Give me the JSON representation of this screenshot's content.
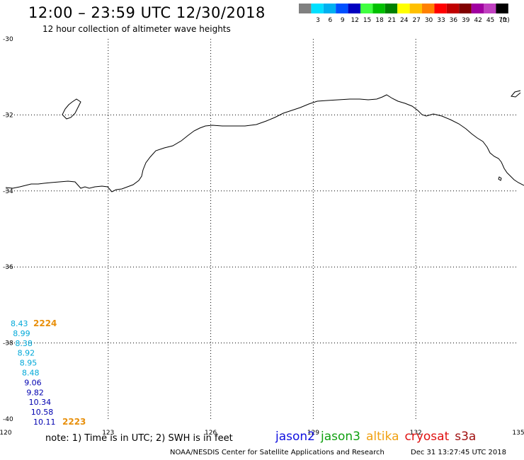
{
  "header": {
    "title": "12:00 – 23:59 UTC 12/30/2018",
    "subtitle": "12 hour collection of altimeter wave heights"
  },
  "colorbar": {
    "unit": "(ft)",
    "bins": [
      {
        "label": "",
        "color": "#808080"
      },
      {
        "label": "3",
        "color": "#00e0ff"
      },
      {
        "label": "6",
        "color": "#00b0f0"
      },
      {
        "label": "9",
        "color": "#0050ff"
      },
      {
        "label": "12",
        "color": "#0000c0"
      },
      {
        "label": "15",
        "color": "#40ff40"
      },
      {
        "label": "18",
        "color": "#00c000"
      },
      {
        "label": "21",
        "color": "#008000"
      },
      {
        "label": "24",
        "color": "#ffff00"
      },
      {
        "label": "27",
        "color": "#ffc000"
      },
      {
        "label": "30",
        "color": "#ff8000"
      },
      {
        "label": "33",
        "color": "#ff0000"
      },
      {
        "label": "36",
        "color": "#c00000"
      },
      {
        "label": "39",
        "color": "#800000"
      },
      {
        "label": "42",
        "color": "#a000a0"
      },
      {
        "label": "45",
        "color": "#c040c0"
      },
      {
        "label": "70",
        "color": "#000000"
      }
    ]
  },
  "map": {
    "lon_range": [
      120,
      135
    ],
    "lat_range": [
      -40,
      -30
    ],
    "lon_ticks": [
      "120",
      "123",
      "126",
      "129",
      "132",
      "135"
    ],
    "lat_ticks": [
      "-30",
      "-32",
      "-34",
      "-36",
      "-38",
      "-40"
    ],
    "grid": "dotted"
  },
  "observations": [
    {
      "value": "8.43",
      "color": "#00a8d8"
    },
    {
      "value": "8.99",
      "color": "#00a8d8"
    },
    {
      "value": "8.38",
      "color": "#00a8d8"
    },
    {
      "value": "8.92",
      "color": "#00a8d8"
    },
    {
      "value": "8.95",
      "color": "#00a8d8"
    },
    {
      "value": "8.48",
      "color": "#00a8d8"
    },
    {
      "value": "9.06",
      "color": "#0000b0"
    },
    {
      "value": "9.82",
      "color": "#0000b0"
    },
    {
      "value": "10.34",
      "color": "#0000b0"
    },
    {
      "value": "10.58",
      "color": "#0000b0"
    },
    {
      "value": "10.11",
      "color": "#0000b0"
    }
  ],
  "passes": {
    "start": "2224",
    "end": "2223"
  },
  "note": "note: 1) Time is in UTC; 2) SWH is in feet",
  "satellites": [
    {
      "name": "jason2",
      "color": "#1010e0"
    },
    {
      "name": "jason3",
      "color": "#10a010"
    },
    {
      "name": "altika",
      "color": "#f0a010"
    },
    {
      "name": "cryosat",
      "color": "#e01010"
    },
    {
      "name": "s3a",
      "color": "#a01010"
    }
  ],
  "credit": "NOAA/NESDIS Center for Satellite Applications and Research",
  "timestamp": "Dec 31 13:27:45 UTC 2018"
}
